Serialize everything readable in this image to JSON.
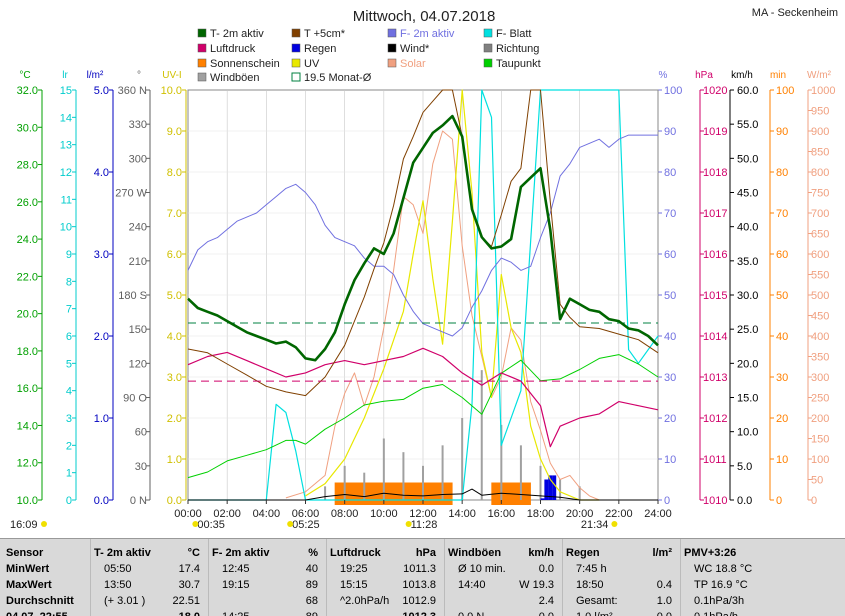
{
  "title": "Mittwoch, 04.07.2018",
  "station": "MA - Seckenheim",
  "legend": [
    {
      "label": "T- 2m aktiv",
      "color": "#006600",
      "sym": "box"
    },
    {
      "label": "T +5cm*",
      "color": "#804000",
      "sym": "box"
    },
    {
      "label": "F- 2m aktiv",
      "color": "#7070e0",
      "sym": "box"
    },
    {
      "label": "F- Blatt",
      "color": "#00e0e0",
      "sym": "box"
    },
    {
      "label": "Luftdruck",
      "color": "#d0006a",
      "sym": "box"
    },
    {
      "label": "Regen",
      "color": "#0000e0",
      "sym": "box"
    },
    {
      "label": "Wind*",
      "color": "#000000",
      "sym": "box"
    },
    {
      "label": "Richtung",
      "color": "#808080",
      "sym": "box"
    },
    {
      "label": "Sonnenschein",
      "color": "#ff8000",
      "sym": "box"
    },
    {
      "label": "UV",
      "color": "#e8e800",
      "sym": "box"
    },
    {
      "label": "Solar",
      "color": "#f0a080",
      "sym": "box"
    },
    {
      "label": "Taupunkt",
      "color": "#00d000",
      "sym": "box"
    },
    {
      "label": "Windböen",
      "color": "#a0a0a0",
      "sym": "box"
    },
    {
      "label": "19.5 Monat-Ø",
      "color": "#008040",
      "sym": "hollow"
    }
  ],
  "axes": {
    "temp": {
      "unit": "°C",
      "color": "#00a000",
      "ticks": [
        "32.0",
        "30.0",
        "28.0",
        "26.0",
        "24.0",
        "22.0",
        "20.0",
        "18.0",
        "16.0",
        "14.0",
        "12.0",
        "10.0"
      ]
    },
    "leaf": {
      "unit": "lr",
      "color": "#00cccc",
      "ticks": [
        "15",
        "14",
        "13",
        "12",
        "11",
        "10",
        "9",
        "8",
        "7",
        "6",
        "5",
        "4",
        "3",
        "2",
        "1",
        "0"
      ]
    },
    "rain": {
      "unit": "l/m²",
      "color": "#0000c0",
      "ticks": [
        "5.0",
        "4.0",
        "3.0",
        "2.0",
        "1.0",
        "0.0"
      ]
    },
    "dir": {
      "unit": "°",
      "color": "#606060",
      "ticks": [
        "360 N",
        "330",
        "300",
        "270 W",
        "240",
        "210",
        "180 S",
        "150",
        "120",
        "90 O",
        "60",
        "30",
        "0 N"
      ]
    },
    "uv": {
      "unit": "UV-I",
      "color": "#d0c000",
      "ticks": [
        "10.0",
        "9.0",
        "8.0",
        "7.0",
        "6.0",
        "5.0",
        "4.0",
        "3.0",
        "2.0",
        "1.0",
        "0.0"
      ]
    },
    "hum": {
      "unit": "%",
      "color": "#7070e0",
      "ticks": [
        "100",
        "90",
        "80",
        "70",
        "60",
        "50",
        "40",
        "30",
        "20",
        "10",
        "0"
      ]
    },
    "press": {
      "unit": "hPa",
      "color": "#d0006a",
      "ticks": [
        "1020",
        "1019",
        "1018",
        "1017",
        "1016",
        "1015",
        "1014",
        "1013",
        "1012",
        "1011",
        "1010"
      ]
    },
    "wind": {
      "unit": "km/h",
      "color": "#000000",
      "ticks": [
        "60.0",
        "55.0",
        "50.0",
        "45.0",
        "40.0",
        "35.0",
        "30.0",
        "25.0",
        "20.0",
        "15.0",
        "10.0",
        "5.0",
        "0.0"
      ]
    },
    "sun": {
      "unit": "min",
      "color": "#ff8000",
      "ticks": [
        "100",
        "90",
        "80",
        "70",
        "60",
        "50",
        "40",
        "30",
        "20",
        "10",
        "0"
      ]
    },
    "solar": {
      "unit": "W/m²",
      "color": "#f0a080",
      "ticks": [
        "1000",
        "950",
        "900",
        "850",
        "800",
        "750",
        "700",
        "650",
        "600",
        "550",
        "500",
        "450",
        "400",
        "350",
        "300",
        "250",
        "200",
        "150",
        "100",
        "50",
        "0"
      ]
    }
  },
  "time_ticks": [
    "00:00",
    "02:00",
    "04:00",
    "06:00",
    "08:00",
    "10:00",
    "12:00",
    "14:00",
    "16:00",
    "18:00",
    "20:00",
    "22:00",
    "24:00"
  ],
  "sun_events": [
    {
      "label": "16:09",
      "x": 0
    },
    {
      "label": "00:35",
      "x": 0.58
    },
    {
      "label": "05:25",
      "x": 5.42
    },
    {
      "label": "11:28",
      "x": 11.47
    },
    {
      "label": "21:34",
      "x": 21.57
    }
  ],
  "chart_data": {
    "type": "line",
    "x_unit": "hour",
    "xlim": [
      0,
      24
    ],
    "series": [
      {
        "name": "T- 2m aktiv",
        "unit": "°C",
        "x": [
          0,
          0.5,
          1,
          1.5,
          2,
          2.5,
          3,
          3.5,
          4,
          4.5,
          5,
          5.5,
          6,
          6.5,
          7,
          7.5,
          8,
          8.5,
          9,
          9.5,
          10,
          10.5,
          11,
          11.5,
          12,
          12.5,
          13,
          13.5,
          14,
          14.5,
          15,
          15.5,
          16,
          16.5,
          17,
          17.5,
          18,
          18.5,
          19,
          19.5,
          20,
          20.5,
          21,
          21.5,
          22,
          22.5,
          23,
          23.5,
          24
        ],
        "values": [
          20.8,
          20.3,
          20.1,
          19.9,
          19.6,
          19.3,
          19.0,
          18.8,
          18.6,
          18.4,
          18.5,
          18.2,
          17.6,
          17.5,
          18.1,
          19.0,
          20.5,
          21.8,
          22.7,
          23.5,
          23.2,
          24.3,
          26.2,
          28.1,
          28.9,
          29.7,
          30.1,
          30.6,
          29.5,
          25.6,
          24.1,
          23.5,
          23.6,
          24.0,
          26.8,
          27.3,
          27.8,
          24.5,
          19.7,
          20.8,
          20.5,
          20.2,
          20.1,
          19.7,
          19.6,
          19.2,
          19.1,
          18.8,
          18.3
        ]
      },
      {
        "name": "T +5cm*",
        "unit": "°C",
        "x": [
          0,
          1,
          2,
          3,
          4,
          5,
          6,
          7,
          8,
          8.5,
          9,
          9.5,
          10,
          10.5,
          11,
          11.5,
          12,
          12.5,
          13,
          13.5,
          14,
          14.5,
          15,
          15.5,
          16,
          16.5,
          17,
          17.5,
          18,
          18.5,
          19,
          19.5,
          20,
          21,
          22,
          23,
          24
        ],
        "values": [
          18.1,
          17.9,
          17.3,
          16.7,
          16.1,
          15.8,
          15.6,
          16.6,
          18.3,
          19.6,
          20.9,
          22.4,
          23.8,
          25.8,
          28.3,
          29.5,
          30.8,
          31.4,
          32.0,
          33.0,
          29.5,
          25.6,
          24.1,
          23.6,
          25.3,
          27.1,
          27.8,
          32.0,
          32.0,
          26.0,
          20.5,
          19.8,
          19.3,
          19.2,
          18.9,
          18.6,
          17.9
        ]
      },
      {
        "name": "F- 2m aktiv",
        "unit": "%",
        "x": [
          0,
          0.5,
          1,
          1.5,
          2,
          2.5,
          3,
          3.5,
          4,
          4.5,
          5,
          5.5,
          6,
          6.5,
          7,
          7.5,
          8,
          8.5,
          9,
          9.5,
          10,
          10.5,
          11,
          11.5,
          12,
          12.5,
          13,
          13.5,
          14,
          14.5,
          15,
          15.5,
          16,
          16.5,
          17,
          17.5,
          18,
          18.5,
          19,
          19.5,
          20,
          20.5,
          21,
          21.5,
          22,
          22.5,
          23,
          23.5,
          24
        ],
        "values": [
          56,
          61,
          63,
          64,
          66,
          68,
          69,
          70,
          72,
          74,
          76,
          77,
          75,
          72,
          67,
          64,
          63,
          62,
          59,
          57,
          57,
          55,
          50,
          46,
          43,
          42,
          41,
          40,
          42,
          47,
          51,
          56,
          59,
          58,
          56,
          57,
          64,
          70,
          79,
          82,
          86,
          87,
          88,
          86,
          88,
          89,
          89,
          89,
          89
        ]
      },
      {
        "name": "Luftdruck",
        "unit": "hPa",
        "x": [
          0,
          1,
          2,
          3,
          4,
          5,
          6,
          7,
          8,
          9,
          10,
          11,
          12,
          13,
          14,
          15,
          16,
          17,
          18,
          18.5,
          19,
          20,
          21,
          22,
          23,
          24
        ],
        "values": [
          1013.3,
          1013.5,
          1013.6,
          1013.4,
          1013.2,
          1013.0,
          1013.1,
          1013.3,
          1013.4,
          1013.3,
          1013.4,
          1013.5,
          1013.7,
          1013.5,
          1013.1,
          1012.8,
          1013.1,
          1012.9,
          1012.3,
          1011.3,
          1011.8,
          1012.0,
          1012.1,
          1012.4,
          1012.3,
          1012.2
        ]
      },
      {
        "name": "Taupunkt",
        "unit": "°C",
        "x": [
          0,
          1,
          2,
          3,
          4,
          5,
          5.5,
          6,
          7,
          8,
          9,
          10,
          11,
          12,
          13,
          14,
          15,
          16,
          17,
          18,
          19,
          20,
          21,
          22,
          23,
          24
        ],
        "values": [
          11.2,
          11.5,
          12.1,
          12.4,
          12.7,
          13.2,
          13.2,
          13.0,
          13.8,
          14.4,
          15.1,
          15.3,
          15.4,
          16.0,
          16.2,
          15.5,
          14.6,
          16.8,
          17.5,
          16.4,
          16.5,
          17.0,
          17.6,
          17.8,
          17.3,
          16.6
        ]
      },
      {
        "name": "Solar",
        "unit": "W/m²",
        "x": [
          5,
          6,
          7,
          7.5,
          8,
          8.5,
          9,
          9.5,
          10,
          10.5,
          11,
          11.5,
          12,
          12.5,
          13,
          13.5,
          14,
          14.5,
          15,
          15.5,
          16,
          16.5,
          17,
          17.5,
          18,
          18.5,
          19,
          19.5,
          20,
          20.5,
          21
        ],
        "values": [
          5,
          20,
          60,
          180,
          260,
          310,
          230,
          300,
          420,
          560,
          740,
          720,
          650,
          820,
          900,
          880,
          620,
          450,
          350,
          250,
          300,
          420,
          390,
          240,
          170,
          90,
          50,
          60,
          30,
          10,
          0
        ]
      },
      {
        "name": "UV",
        "unit": "UV-I",
        "x": [
          6,
          7,
          8,
          9,
          10,
          10.5,
          11,
          11.5,
          12,
          12.5,
          13,
          13.5,
          14,
          14.5,
          15,
          15.5,
          16,
          16.5,
          17,
          17.5,
          18,
          18.5,
          19,
          20,
          21
        ],
        "values": [
          0.1,
          0.4,
          1.0,
          2.0,
          3.2,
          3.9,
          4.6,
          6.0,
          7.3,
          5.4,
          3.8,
          6.8,
          10.0,
          7.5,
          3.6,
          2.5,
          5.5,
          4.2,
          3.6,
          1.8,
          1.0,
          0.5,
          0.2,
          0.0,
          0.0
        ]
      },
      {
        "name": "F- Blatt",
        "unit": "lr",
        "x": [
          0,
          1,
          2,
          3,
          4,
          4.5,
          5,
          5.5,
          6,
          7,
          8,
          9,
          10,
          11,
          12,
          13,
          14,
          14.5,
          15,
          15.5,
          16,
          17,
          18,
          18.5,
          19,
          20,
          21,
          22,
          22.5,
          23,
          24
        ],
        "values": [
          0,
          0,
          0,
          0,
          0,
          3.5,
          3.2,
          1.8,
          0,
          0,
          0,
          0,
          0,
          0,
          0,
          0,
          0,
          3.5,
          15,
          14,
          2,
          4,
          15,
          15,
          15,
          15,
          15,
          15,
          5.5,
          5,
          6
        ]
      },
      {
        "name": "Wind*",
        "unit": "km/h",
        "x": [
          0,
          2,
          4,
          6,
          7,
          8,
          9,
          10,
          11,
          12,
          13,
          14,
          14.5,
          15,
          16,
          17,
          18,
          19,
          20,
          21,
          22,
          23,
          24
        ],
        "values": [
          0,
          0,
          0,
          0,
          0.5,
          0.8,
          0.5,
          1,
          0.7,
          0.6,
          0.8,
          0.9,
          1.6,
          0.7,
          1.0,
          0.8,
          0.6,
          0.4,
          0,
          0,
          0,
          0,
          0
        ]
      },
      {
        "name": "Windböen",
        "unit": "km/h",
        "x": [
          7,
          8,
          9,
          10,
          11,
          12,
          13,
          14,
          15,
          16,
          17,
          18,
          19,
          20
        ],
        "values": [
          2,
          5,
          4,
          9,
          7,
          5,
          8,
          12,
          19,
          11,
          8,
          5,
          3,
          2
        ]
      },
      {
        "name": "Sonnenschein",
        "unit": "min",
        "x": [
          8,
          9,
          10,
          11,
          12,
          13,
          16,
          17
        ],
        "values": [
          5,
          5,
          5,
          5,
          5,
          5,
          5,
          5
        ]
      },
      {
        "name": "Regen",
        "unit": "l/m²",
        "x": [
          18.1,
          18.3,
          18.5,
          18.7
        ],
        "values": [
          0.02,
          0.25,
          0.3,
          0.3
        ]
      },
      {
        "name": "19.5 Monat-Ø",
        "unit": "°C",
        "x": [
          0,
          24
        ],
        "values": [
          19.5,
          19.5
        ]
      }
    ]
  },
  "stats": {
    "cols": [
      {
        "h": [
          "Sensor",
          ""
        ],
        "rows": [
          [
            "MinWert",
            ""
          ],
          [
            "MaxWert",
            ""
          ],
          [
            "Durchschnitt",
            ""
          ],
          [
            "04.07. 22:55",
            ""
          ]
        ]
      },
      {
        "h": [
          "T- 2m aktiv",
          "°C"
        ],
        "rows": [
          [
            "05:50",
            "17.4"
          ],
          [
            "13:50",
            "30.7"
          ],
          [
            "(+ 3.01 )",
            "22.51"
          ],
          [
            "",
            "18.0"
          ]
        ]
      },
      {
        "h": [
          "F- 2m aktiv",
          "%"
        ],
        "rows": [
          [
            "12:45",
            "40"
          ],
          [
            "19:15",
            "89"
          ],
          [
            "",
            "68"
          ],
          [
            "14:25 ... ",
            "89"
          ]
        ]
      },
      {
        "h": [
          "Luftdruck",
          "hPa"
        ],
        "rows": [
          [
            "19:25",
            "1011.3"
          ],
          [
            "15:15",
            "1013.8"
          ],
          [
            "^2.0hPa/h",
            "1012.9"
          ],
          [
            "",
            "1012.3"
          ]
        ]
      },
      {
        "h": [
          "Windböen",
          "km/h"
        ],
        "rows": [
          [
            "Ø 10 min.",
            "0.0"
          ],
          [
            "14:40",
            "W 19.3"
          ],
          [
            "",
            "2.4"
          ],
          [
            "0.0 N",
            "0.0"
          ]
        ]
      },
      {
        "h": [
          "Regen",
          "l/m²"
        ],
        "rows": [
          [
            "7:45 h",
            ""
          ],
          [
            "18:50",
            "0.4"
          ],
          [
            "Gesamt:",
            "1.0"
          ],
          [
            "1.0 l/m²",
            "0.0"
          ]
        ]
      },
      {
        "h": [
          "PMV+3:26",
          ""
        ],
        "rows": [
          [
            "WC 18.8 °C",
            ""
          ],
          [
            "TP 16.9 °C",
            ""
          ],
          [
            "0.1hPa/3h",
            ""
          ],
          [
            "0.1hPa/h",
            ""
          ]
        ]
      }
    ]
  }
}
